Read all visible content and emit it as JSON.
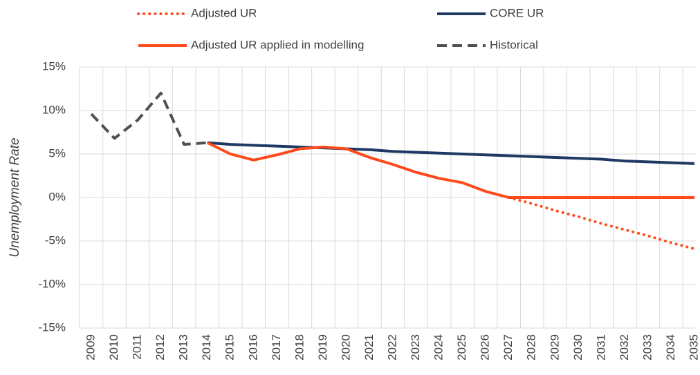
{
  "chart_data": {
    "type": "line",
    "y_label": "Unemployment Rate",
    "categories": [
      "2009",
      "2010",
      "2011",
      "2012",
      "2013",
      "2014",
      "2015",
      "2016",
      "2017",
      "2018",
      "2019",
      "2020",
      "2021",
      "2022",
      "2023",
      "2024",
      "2025",
      "2026",
      "2027",
      "2028",
      "2029",
      "2030",
      "2031",
      "2032",
      "2033",
      "2034",
      "2035"
    ],
    "ylim": [
      -15,
      15
    ],
    "yticks": [
      {
        "value": -15,
        "label": "-15%"
      },
      {
        "value": -10,
        "label": "-10%"
      },
      {
        "value": -5,
        "label": "-5%"
      },
      {
        "value": 0,
        "label": "0%"
      },
      {
        "value": 5,
        "label": "5%"
      },
      {
        "value": 10,
        "label": "10%"
      },
      {
        "value": 15,
        "label": "15%"
      }
    ],
    "grid": true,
    "legend": "top",
    "series": [
      {
        "name": "Adjusted UR",
        "color": "#ff4a1c",
        "style": "dotted",
        "values": [
          null,
          null,
          null,
          null,
          null,
          null,
          null,
          null,
          null,
          null,
          null,
          null,
          null,
          null,
          null,
          null,
          null,
          null,
          0,
          -0.7,
          -1.5,
          -2.2,
          -3.0,
          -3.7,
          -4.4,
          -5.2,
          -5.9
        ]
      },
      {
        "name": "CORE UR",
        "color": "#203864",
        "style": "solid",
        "values": [
          null,
          null,
          null,
          null,
          null,
          6.3,
          6.1,
          6.0,
          5.9,
          5.8,
          5.7,
          5.6,
          5.5,
          5.3,
          5.2,
          5.1,
          5.0,
          4.9,
          4.8,
          4.7,
          4.6,
          4.5,
          4.4,
          4.2,
          4.1,
          4.0,
          3.9
        ]
      },
      {
        "name": "Adjusted UR applied in modelling",
        "color": "#ff4a1c",
        "style": "solid",
        "values": [
          null,
          null,
          null,
          null,
          null,
          6.3,
          5.0,
          4.3,
          4.9,
          5.6,
          5.8,
          5.6,
          4.6,
          3.8,
          2.9,
          2.2,
          1.7,
          0.7,
          0,
          0,
          0,
          0,
          0,
          0,
          0,
          0,
          0
        ]
      },
      {
        "name": "Historical",
        "color": "#505050",
        "style": "dashed",
        "values": [
          9.6,
          6.8,
          8.9,
          12.0,
          6.1,
          6.3,
          null,
          null,
          null,
          null,
          null,
          null,
          null,
          null,
          null,
          null,
          null,
          null,
          null,
          null,
          null,
          null,
          null,
          null,
          null,
          null,
          null
        ]
      }
    ]
  }
}
